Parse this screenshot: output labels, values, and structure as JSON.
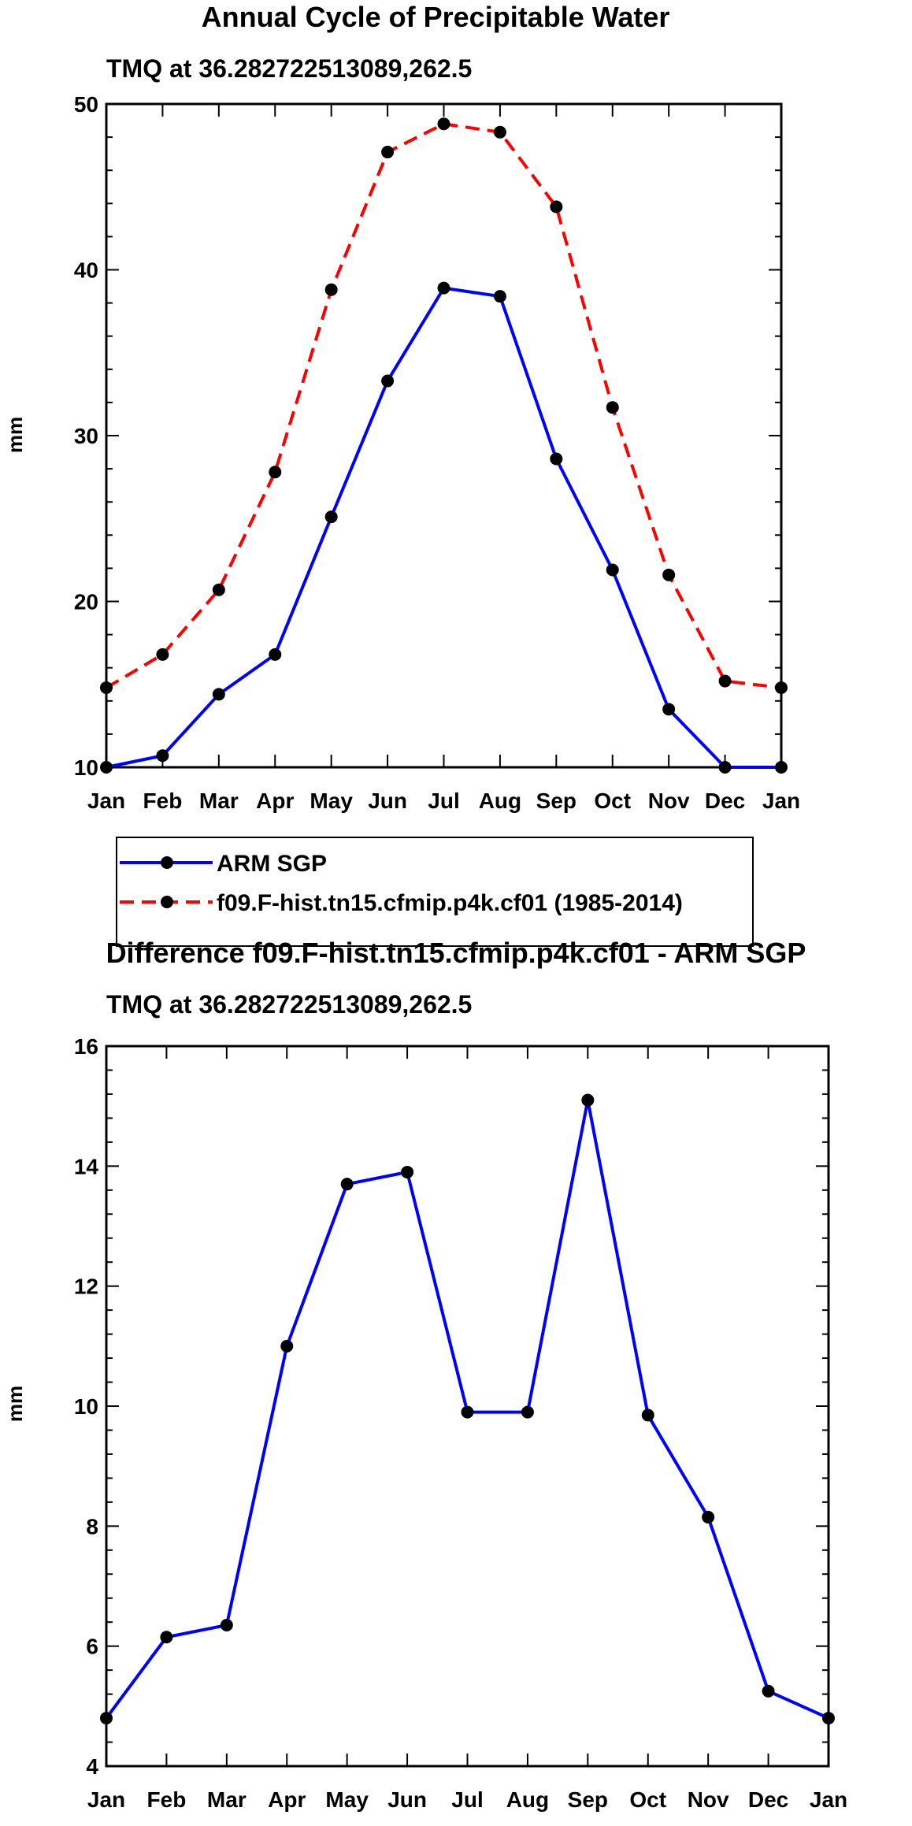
{
  "chart_data": [
    {
      "type": "line",
      "title": "Annual Cycle of Precipitable Water",
      "subtitle": "TMQ at 36.282722513089,262.5",
      "xlabel": "",
      "ylabel": "mm",
      "categories": [
        "Jan",
        "Feb",
        "Mar",
        "Apr",
        "May",
        "Jun",
        "Jul",
        "Aug",
        "Sep",
        "Oct",
        "Nov",
        "Dec",
        "Jan"
      ],
      "ylim": [
        10,
        50
      ],
      "yticks": [
        10,
        20,
        30,
        40,
        50
      ],
      "series": [
        {
          "name": "ARM SGP",
          "color": "#0000ff",
          "dash": "solid",
          "values": [
            10.0,
            10.7,
            14.4,
            16.8,
            25.1,
            33.3,
            38.9,
            38.4,
            28.6,
            21.9,
            13.5,
            10.0,
            10.0
          ]
        },
        {
          "name": "f09.F-hist.tn15.cfmip.p4k.cf01 (1985-2014)",
          "color": "#ff0000",
          "dash": "dashed",
          "values": [
            14.8,
            16.8,
            20.7,
            27.8,
            38.8,
            47.1,
            48.8,
            48.3,
            43.8,
            31.7,
            21.6,
            15.2,
            14.8
          ]
        }
      ],
      "legend": {
        "position": "below",
        "entries": [
          "ARM SGP",
          "f09.F-hist.tn15.cfmip.p4k.cf01 (1985-2014)"
        ]
      }
    },
    {
      "type": "line",
      "title": "Difference f09.F-hist.tn15.cfmip.p4k.cf01 - ARM SGP",
      "subtitle": "TMQ at 36.282722513089,262.5",
      "xlabel": "",
      "ylabel": "mm",
      "categories": [
        "Jan",
        "Feb",
        "Mar",
        "Apr",
        "May",
        "Jun",
        "Jul",
        "Aug",
        "Sep",
        "Oct",
        "Nov",
        "Dec",
        "Jan"
      ],
      "ylim": [
        4,
        16
      ],
      "yticks": [
        4,
        6,
        8,
        10,
        12,
        14,
        16
      ],
      "series": [
        {
          "name": "Difference",
          "color": "#0000ff",
          "dash": "solid",
          "values": [
            4.8,
            6.15,
            6.35,
            11.0,
            13.7,
            13.9,
            9.9,
            9.9,
            15.1,
            9.85,
            8.15,
            5.25,
            4.8
          ]
        }
      ]
    }
  ]
}
